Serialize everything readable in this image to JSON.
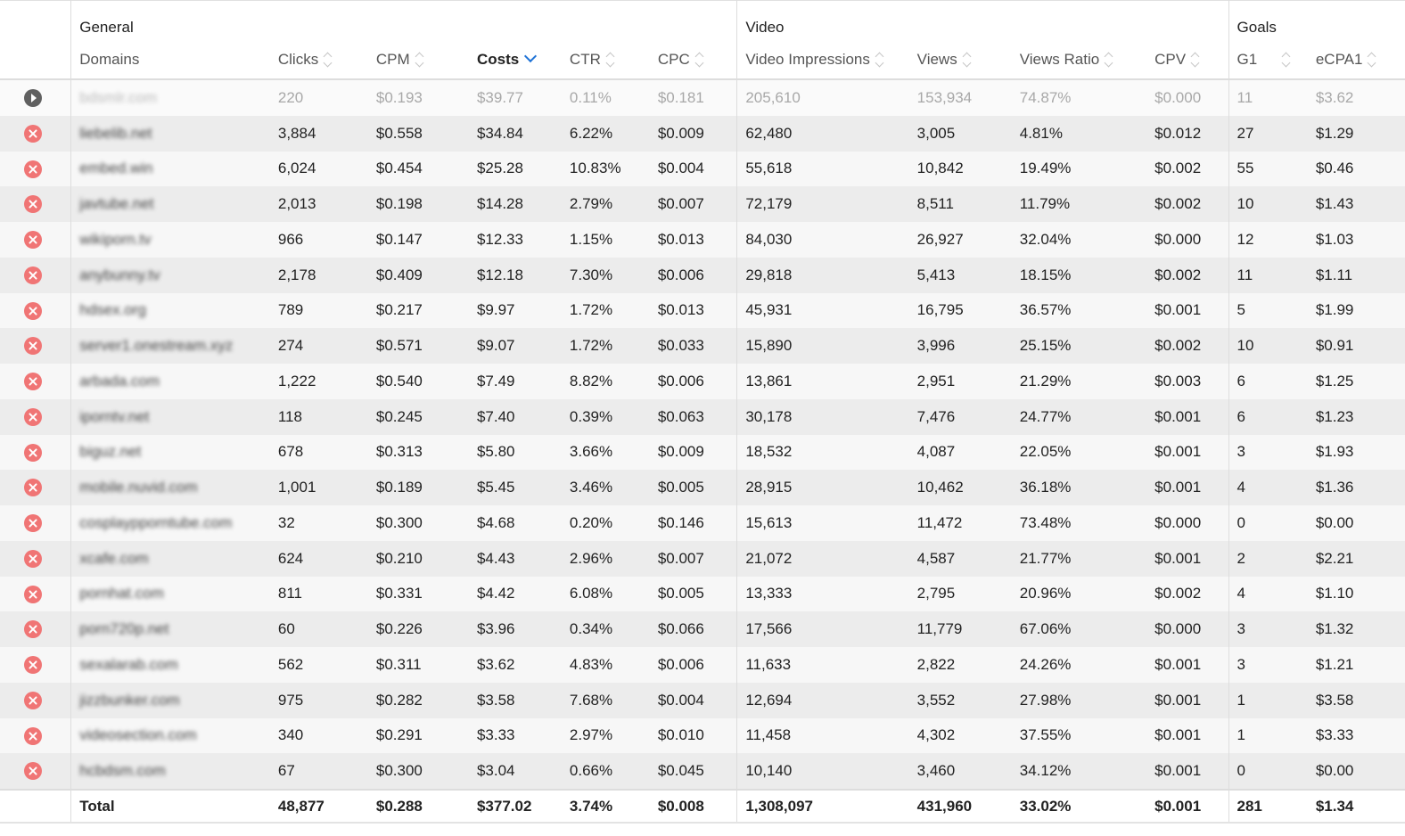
{
  "groups": {
    "general": "General",
    "video": "Video",
    "goals": "Goals"
  },
  "columns": {
    "domains": "Domains",
    "clicks": "Clicks",
    "cpm": "CPM",
    "costs": "Costs",
    "ctr": "CTR",
    "cpc": "CPC",
    "video_impressions": "Video Impressions",
    "views": "Views",
    "views_ratio": "Views Ratio",
    "cpv": "CPV",
    "g1": "G1",
    "ecpa1": "eCPA1"
  },
  "sort": {
    "column": "Costs",
    "direction": "descending",
    "indicator_color": "#1f73d6"
  },
  "action_colors": {
    "remove": "#f07575",
    "play": "#606060"
  },
  "rows": [
    {
      "action": "play-icon",
      "domain": "bdsmlr.com",
      "clicks": "220",
      "cpm": "$0.193",
      "costs": "$39.77",
      "ctr": "0.11%",
      "cpc": "$0.181",
      "video_impressions": "205,610",
      "views": "153,934",
      "views_ratio": "74.87%",
      "cpv": "$0.000",
      "g1": "11",
      "ecpa1": "$3.62"
    },
    {
      "action": "remove-icon",
      "domain": "liebelib.net",
      "clicks": "3,884",
      "cpm": "$0.558",
      "costs": "$34.84",
      "ctr": "6.22%",
      "cpc": "$0.009",
      "video_impressions": "62,480",
      "views": "3,005",
      "views_ratio": "4.81%",
      "cpv": "$0.012",
      "g1": "27",
      "ecpa1": "$1.29"
    },
    {
      "action": "remove-icon",
      "domain": "embed.win",
      "clicks": "6,024",
      "cpm": "$0.454",
      "costs": "$25.28",
      "ctr": "10.83%",
      "cpc": "$0.004",
      "video_impressions": "55,618",
      "views": "10,842",
      "views_ratio": "19.49%",
      "cpv": "$0.002",
      "g1": "55",
      "ecpa1": "$0.46"
    },
    {
      "action": "remove-icon",
      "domain": "javtube.net",
      "clicks": "2,013",
      "cpm": "$0.198",
      "costs": "$14.28",
      "ctr": "2.79%",
      "cpc": "$0.007",
      "video_impressions": "72,179",
      "views": "8,511",
      "views_ratio": "11.79%",
      "cpv": "$0.002",
      "g1": "10",
      "ecpa1": "$1.43"
    },
    {
      "action": "remove-icon",
      "domain": "wikiporn.tv",
      "clicks": "966",
      "cpm": "$0.147",
      "costs": "$12.33",
      "ctr": "1.15%",
      "cpc": "$0.013",
      "video_impressions": "84,030",
      "views": "26,927",
      "views_ratio": "32.04%",
      "cpv": "$0.000",
      "g1": "12",
      "ecpa1": "$1.03"
    },
    {
      "action": "remove-icon",
      "domain": "anybunny.tv",
      "clicks": "2,178",
      "cpm": "$0.409",
      "costs": "$12.18",
      "ctr": "7.30%",
      "cpc": "$0.006",
      "video_impressions": "29,818",
      "views": "5,413",
      "views_ratio": "18.15%",
      "cpv": "$0.002",
      "g1": "11",
      "ecpa1": "$1.11"
    },
    {
      "action": "remove-icon",
      "domain": "hdsex.org",
      "clicks": "789",
      "cpm": "$0.217",
      "costs": "$9.97",
      "ctr": "1.72%",
      "cpc": "$0.013",
      "video_impressions": "45,931",
      "views": "16,795",
      "views_ratio": "36.57%",
      "cpv": "$0.001",
      "g1": "5",
      "ecpa1": "$1.99"
    },
    {
      "action": "remove-icon",
      "domain": "server1.onestream.xyz",
      "clicks": "274",
      "cpm": "$0.571",
      "costs": "$9.07",
      "ctr": "1.72%",
      "cpc": "$0.033",
      "video_impressions": "15,890",
      "views": "3,996",
      "views_ratio": "25.15%",
      "cpv": "$0.002",
      "g1": "10",
      "ecpa1": "$0.91"
    },
    {
      "action": "remove-icon",
      "domain": "arbada.com",
      "clicks": "1,222",
      "cpm": "$0.540",
      "costs": "$7.49",
      "ctr": "8.82%",
      "cpc": "$0.006",
      "video_impressions": "13,861",
      "views": "2,951",
      "views_ratio": "21.29%",
      "cpv": "$0.003",
      "g1": "6",
      "ecpa1": "$1.25"
    },
    {
      "action": "remove-icon",
      "domain": "iporntv.net",
      "clicks": "118",
      "cpm": "$0.245",
      "costs": "$7.40",
      "ctr": "0.39%",
      "cpc": "$0.063",
      "video_impressions": "30,178",
      "views": "7,476",
      "views_ratio": "24.77%",
      "cpv": "$0.001",
      "g1": "6",
      "ecpa1": "$1.23"
    },
    {
      "action": "remove-icon",
      "domain": "biguz.net",
      "clicks": "678",
      "cpm": "$0.313",
      "costs": "$5.80",
      "ctr": "3.66%",
      "cpc": "$0.009",
      "video_impressions": "18,532",
      "views": "4,087",
      "views_ratio": "22.05%",
      "cpv": "$0.001",
      "g1": "3",
      "ecpa1": "$1.93"
    },
    {
      "action": "remove-icon",
      "domain": "mobile.nuvid.com",
      "clicks": "1,001",
      "cpm": "$0.189",
      "costs": "$5.45",
      "ctr": "3.46%",
      "cpc": "$0.005",
      "video_impressions": "28,915",
      "views": "10,462",
      "views_ratio": "36.18%",
      "cpv": "$0.001",
      "g1": "4",
      "ecpa1": "$1.36"
    },
    {
      "action": "remove-icon",
      "domain": "cosplaypporntube.com",
      "clicks": "32",
      "cpm": "$0.300",
      "costs": "$4.68",
      "ctr": "0.20%",
      "cpc": "$0.146",
      "video_impressions": "15,613",
      "views": "11,472",
      "views_ratio": "73.48%",
      "cpv": "$0.000",
      "g1": "0",
      "ecpa1": "$0.00"
    },
    {
      "action": "remove-icon",
      "domain": "xcafe.com",
      "clicks": "624",
      "cpm": "$0.210",
      "costs": "$4.43",
      "ctr": "2.96%",
      "cpc": "$0.007",
      "video_impressions": "21,072",
      "views": "4,587",
      "views_ratio": "21.77%",
      "cpv": "$0.001",
      "g1": "2",
      "ecpa1": "$2.21"
    },
    {
      "action": "remove-icon",
      "domain": "pornhat.com",
      "clicks": "811",
      "cpm": "$0.331",
      "costs": "$4.42",
      "ctr": "6.08%",
      "cpc": "$0.005",
      "video_impressions": "13,333",
      "views": "2,795",
      "views_ratio": "20.96%",
      "cpv": "$0.002",
      "g1": "4",
      "ecpa1": "$1.10"
    },
    {
      "action": "remove-icon",
      "domain": "porn720p.net",
      "clicks": "60",
      "cpm": "$0.226",
      "costs": "$3.96",
      "ctr": "0.34%",
      "cpc": "$0.066",
      "video_impressions": "17,566",
      "views": "11,779",
      "views_ratio": "67.06%",
      "cpv": "$0.000",
      "g1": "3",
      "ecpa1": "$1.32"
    },
    {
      "action": "remove-icon",
      "domain": "sexalarab.com",
      "clicks": "562",
      "cpm": "$0.311",
      "costs": "$3.62",
      "ctr": "4.83%",
      "cpc": "$0.006",
      "video_impressions": "11,633",
      "views": "2,822",
      "views_ratio": "24.26%",
      "cpv": "$0.001",
      "g1": "3",
      "ecpa1": "$1.21"
    },
    {
      "action": "remove-icon",
      "domain": "jizzbunker.com",
      "clicks": "975",
      "cpm": "$0.282",
      "costs": "$3.58",
      "ctr": "7.68%",
      "cpc": "$0.004",
      "video_impressions": "12,694",
      "views": "3,552",
      "views_ratio": "27.98%",
      "cpv": "$0.001",
      "g1": "1",
      "ecpa1": "$3.58"
    },
    {
      "action": "remove-icon",
      "domain": "videosection.com",
      "clicks": "340",
      "cpm": "$0.291",
      "costs": "$3.33",
      "ctr": "2.97%",
      "cpc": "$0.010",
      "video_impressions": "11,458",
      "views": "4,302",
      "views_ratio": "37.55%",
      "cpv": "$0.001",
      "g1": "1",
      "ecpa1": "$3.33"
    },
    {
      "action": "remove-icon",
      "domain": "hcbdsm.com",
      "clicks": "67",
      "cpm": "$0.300",
      "costs": "$3.04",
      "ctr": "0.66%",
      "cpc": "$0.045",
      "video_impressions": "10,140",
      "views": "3,460",
      "views_ratio": "34.12%",
      "cpv": "$0.001",
      "g1": "0",
      "ecpa1": "$0.00"
    }
  ],
  "total": {
    "label": "Total",
    "clicks": "48,877",
    "cpm": "$0.288",
    "costs": "$377.02",
    "ctr": "3.74%",
    "cpc": "$0.008",
    "video_impressions": "1,308,097",
    "views": "431,960",
    "views_ratio": "33.02%",
    "cpv": "$0.001",
    "g1": "281",
    "ecpa1": "$1.34"
  }
}
